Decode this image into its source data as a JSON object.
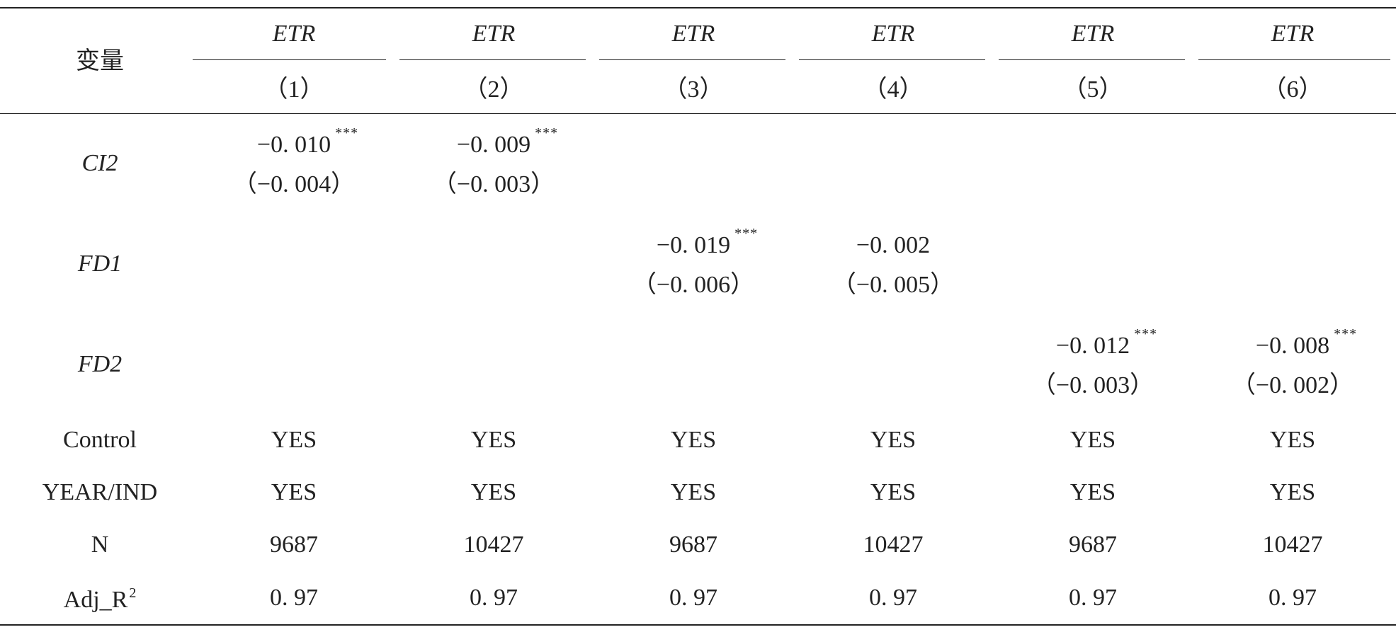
{
  "table": {
    "corner_label": "变量",
    "columns": [
      {
        "dep": "ETR",
        "num": "（1）"
      },
      {
        "dep": "ETR",
        "num": "（2）"
      },
      {
        "dep": "ETR",
        "num": "（3）"
      },
      {
        "dep": "ETR",
        "num": "（4）"
      },
      {
        "dep": "ETR",
        "num": "（5）"
      },
      {
        "dep": "ETR",
        "num": "（6）"
      }
    ],
    "coef_rows": [
      {
        "label": "CI2",
        "cells": [
          {
            "coef": "−0. 010",
            "stars": "***",
            "se": "（−0. 004）"
          },
          {
            "coef": "−0. 009",
            "stars": "***",
            "se": "（−0. 003）"
          },
          null,
          null,
          null,
          null
        ]
      },
      {
        "label": "FD1",
        "cells": [
          null,
          null,
          {
            "coef": "−0. 019",
            "stars": "***",
            "se": "（−0. 006）"
          },
          {
            "coef": "−0. 002",
            "stars": "",
            "se": "（−0. 005）"
          },
          null,
          null
        ]
      },
      {
        "label": "FD2",
        "cells": [
          null,
          null,
          null,
          null,
          {
            "coef": "−0. 012",
            "stars": "***",
            "se": "（−0. 003）"
          },
          {
            "coef": "−0. 008",
            "stars": "***",
            "se": "（−0. 002）"
          }
        ]
      }
    ],
    "stat_rows": [
      {
        "label": "Control",
        "values": [
          "YES",
          "YES",
          "YES",
          "YES",
          "YES",
          "YES"
        ]
      },
      {
        "label": "YEAR/IND",
        "values": [
          "YES",
          "YES",
          "YES",
          "YES",
          "YES",
          "YES"
        ]
      },
      {
        "label": "N",
        "values": [
          "9687",
          "10427",
          "9687",
          "10427",
          "9687",
          "10427"
        ]
      },
      {
        "label": "Adj_R",
        "label_sup": "2",
        "values": [
          "0. 97",
          "0. 97",
          "0. 97",
          "0. 97",
          "0. 97",
          "0. 97"
        ]
      }
    ]
  }
}
